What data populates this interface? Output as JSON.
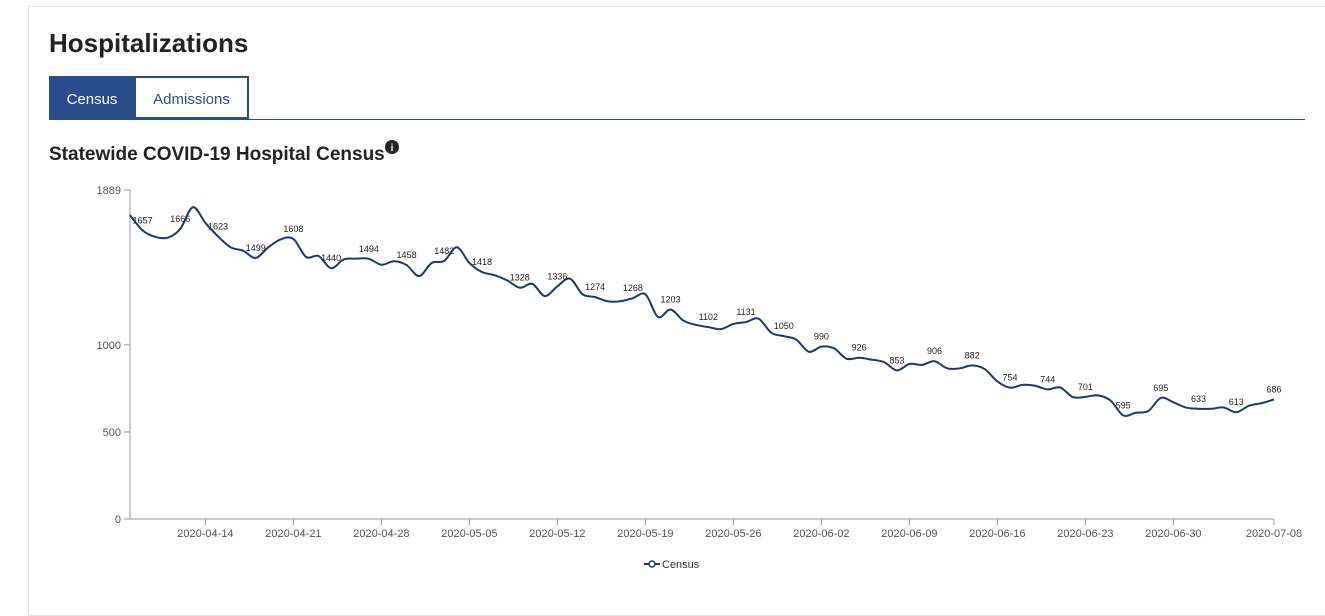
{
  "header": {
    "title": "Hospitalizations"
  },
  "tabs": [
    "Census",
    "Admissions"
  ],
  "chart_data": {
    "type": "line",
    "title": "Statewide COVID-19 Hospital Census",
    "x": [
      "2020-04-08",
      "2020-04-09",
      "2020-04-10",
      "2020-04-11",
      "2020-04-12",
      "2020-04-13",
      "2020-04-14",
      "2020-04-15",
      "2020-04-16",
      "2020-04-17",
      "2020-04-18",
      "2020-04-19",
      "2020-04-20",
      "2020-04-21",
      "2020-04-22",
      "2020-04-23",
      "2020-04-24",
      "2020-04-25",
      "2020-04-26",
      "2020-04-27",
      "2020-04-28",
      "2020-04-29",
      "2020-04-30",
      "2020-05-01",
      "2020-05-02",
      "2020-05-03",
      "2020-05-04",
      "2020-05-05",
      "2020-05-06",
      "2020-05-07",
      "2020-05-08",
      "2020-05-09",
      "2020-05-10",
      "2020-05-11",
      "2020-05-12",
      "2020-05-13",
      "2020-05-14",
      "2020-05-15",
      "2020-05-16",
      "2020-05-17",
      "2020-05-18",
      "2020-05-19",
      "2020-05-20",
      "2020-05-21",
      "2020-05-22",
      "2020-05-23",
      "2020-05-24",
      "2020-05-25",
      "2020-05-26",
      "2020-05-27",
      "2020-05-28",
      "2020-05-29",
      "2020-05-30",
      "2020-05-31",
      "2020-06-01",
      "2020-06-02",
      "2020-06-03",
      "2020-06-04",
      "2020-06-05",
      "2020-06-06",
      "2020-06-07",
      "2020-06-08",
      "2020-06-09",
      "2020-06-10",
      "2020-06-11",
      "2020-06-12",
      "2020-06-13",
      "2020-06-14",
      "2020-06-15",
      "2020-06-16",
      "2020-06-17",
      "2020-06-18",
      "2020-06-19",
      "2020-06-20",
      "2020-06-21",
      "2020-06-22",
      "2020-06-23",
      "2020-06-24",
      "2020-06-25",
      "2020-06-26",
      "2020-06-27",
      "2020-06-28",
      "2020-06-29",
      "2020-06-30",
      "2020-07-01",
      "2020-07-02",
      "2020-07-03",
      "2020-07-04",
      "2020-07-05",
      "2020-07-06",
      "2020-07-07",
      "2020-07-08"
    ],
    "series": [
      {
        "name": "Census",
        "color": "#1d3a6e",
        "values": [
          1745,
          1657,
          1620,
          1615,
          1666,
          1790,
          1700,
          1623,
          1560,
          1540,
          1499,
          1560,
          1606,
          1608,
          1505,
          1510,
          1440,
          1490,
          1495,
          1494,
          1460,
          1480,
          1458,
          1395,
          1470,
          1482,
          1560,
          1470,
          1418,
          1400,
          1370,
          1328,
          1350,
          1280,
          1336,
          1380,
          1290,
          1274,
          1250,
          1250,
          1268,
          1290,
          1160,
          1203,
          1140,
          1115,
          1102,
          1090,
          1120,
          1131,
          1150,
          1070,
          1050,
          1030,
          960,
          990,
          980,
          920,
          926,
          915,
          900,
          853,
          890,
          885,
          906,
          865,
          865,
          882,
          860,
          790,
          754,
          770,
          765,
          744,
          755,
          700,
          701,
          710,
          680,
          595,
          610,
          620,
          695,
          670,
          640,
          633,
          633,
          640,
          613,
          650,
          665,
          686
        ]
      }
    ],
    "xlim": [
      "2020-04-08",
      "2020-07-08"
    ],
    "xticks": [
      "2020-04-14",
      "2020-04-21",
      "2020-04-28",
      "2020-05-05",
      "2020-05-12",
      "2020-05-19",
      "2020-05-26",
      "2020-06-02",
      "2020-06-09",
      "2020-06-16",
      "2020-06-23",
      "2020-06-30",
      "2020-07-08"
    ],
    "ylim": [
      0,
      1889
    ],
    "yticks": [
      0,
      500,
      1000,
      1889
    ]
  }
}
